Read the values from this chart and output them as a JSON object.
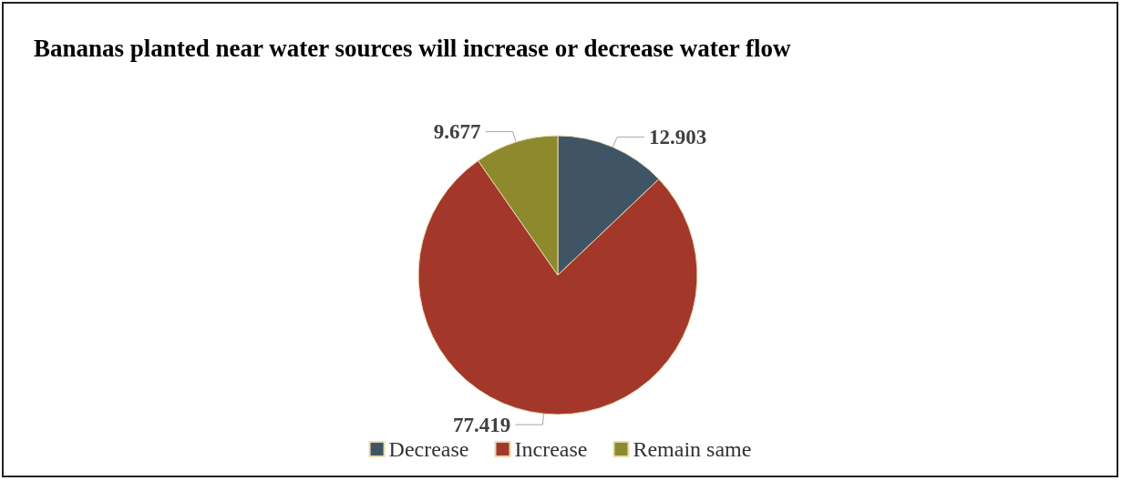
{
  "chart_data": {
    "type": "pie",
    "title": "Bananas planted near water sources will increase or decrease water flow",
    "categories": [
      "Decrease",
      "Increase",
      "Remain same"
    ],
    "values": [
      12.903,
      77.419,
      9.677
    ],
    "colors": [
      "#3f5566",
      "#a3382a",
      "#8c8a2c"
    ],
    "data_labels": true,
    "legend": "bottom"
  }
}
